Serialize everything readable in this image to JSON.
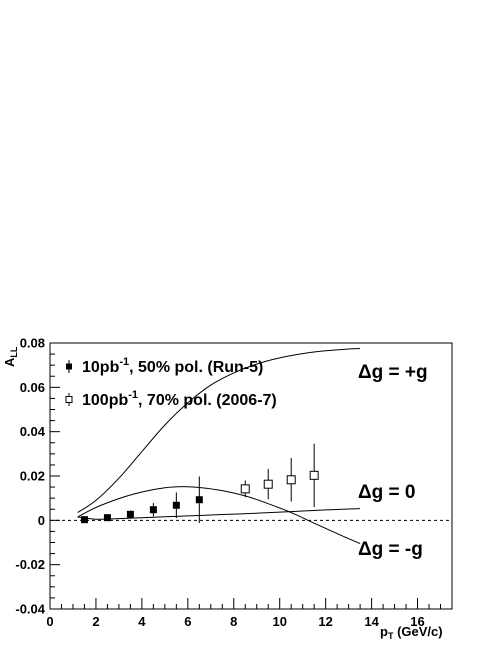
{
  "chart_data": {
    "type": "scatter",
    "xlabel": {
      "main": "p",
      "sub": "T",
      "rest": " (GeV/c)"
    },
    "ylabel": {
      "main": "A",
      "sub": "LL"
    },
    "xlim": [
      0,
      17.5
    ],
    "ylim": [
      -0.04,
      0.08
    ],
    "x_ticks": [
      "0",
      "2",
      "4",
      "6",
      "8",
      "10",
      "12",
      "14",
      "16"
    ],
    "x_tick_values": [
      0,
      2,
      4,
      6,
      8,
      10,
      12,
      14,
      16
    ],
    "y_ticks": [
      "-0.04",
      "-0.02",
      "0",
      "0.02",
      "0.04",
      "0.06",
      "0.08"
    ],
    "y_tick_values": [
      -0.04,
      -0.02,
      0,
      0.02,
      0.04,
      0.06,
      0.08
    ],
    "grid": false,
    "zero_line": "dashed",
    "series": [
      {
        "marker": "filled-square",
        "legend": {
          "pre": "10pb",
          "sup": "-1",
          "post": ", 50% pol. (Run-5)"
        },
        "points": [
          {
            "x": 1.5,
            "y": 0.0003,
            "err": 0.0007
          },
          {
            "x": 2.5,
            "y": 0.0012,
            "err": 0.0012
          },
          {
            "x": 3.5,
            "y": 0.0027,
            "err": 0.0017
          },
          {
            "x": 4.5,
            "y": 0.0048,
            "err": 0.003
          },
          {
            "x": 5.5,
            "y": 0.0068,
            "err": 0.0058
          },
          {
            "x": 6.5,
            "y": 0.0093,
            "err": 0.0105
          }
        ]
      },
      {
        "marker": "open-square",
        "legend": {
          "pre": "100pb",
          "sup": "-1",
          "post": ", 70% pol. (2006-7)"
        },
        "points": [
          {
            "x": 8.5,
            "y": 0.0142,
            "err": 0.0038
          },
          {
            "x": 9.5,
            "y": 0.0163,
            "err": 0.0068
          },
          {
            "x": 10.5,
            "y": 0.0183,
            "err": 0.0098
          },
          {
            "x": 11.5,
            "y": 0.0203,
            "err": 0.0143
          }
        ]
      }
    ],
    "curves": [
      {
        "label": "Δg = +g",
        "points": [
          [
            1.2,
            0.0035
          ],
          [
            2,
            0.009
          ],
          [
            3,
            0.019
          ],
          [
            4,
            0.031
          ],
          [
            5,
            0.043
          ],
          [
            6,
            0.053
          ],
          [
            7,
            0.061
          ],
          [
            8,
            0.0665
          ],
          [
            9,
            0.0705
          ],
          [
            10,
            0.0733
          ],
          [
            11,
            0.0752
          ],
          [
            12,
            0.0765
          ],
          [
            13,
            0.0773
          ],
          [
            13.5,
            0.0775
          ]
        ]
      },
      {
        "label": "Δg = 0",
        "points": [
          [
            1.2,
            0.0015
          ],
          [
            2,
            0.0005
          ],
          [
            3,
            0.0008
          ],
          [
            4,
            0.0012
          ],
          [
            5,
            0.0016
          ],
          [
            6,
            0.002
          ],
          [
            7,
            0.0024
          ],
          [
            8,
            0.0028
          ],
          [
            9,
            0.0032
          ],
          [
            10,
            0.0037
          ],
          [
            11,
            0.0042
          ],
          [
            12,
            0.0047
          ],
          [
            13,
            0.0051
          ],
          [
            13.5,
            0.0053
          ]
        ]
      },
      {
        "label": "Δg = -g",
        "points": [
          [
            1.2,
            0.0015
          ],
          [
            2,
            0.0058
          ],
          [
            3,
            0.0098
          ],
          [
            4,
            0.0128
          ],
          [
            5,
            0.0147
          ],
          [
            5.8,
            0.0152
          ],
          [
            6.5,
            0.0148
          ],
          [
            7.5,
            0.0134
          ],
          [
            8.5,
            0.011
          ],
          [
            9.5,
            0.0075
          ],
          [
            10.5,
            0.0035
          ],
          [
            11.5,
            -0.0013
          ],
          [
            12.5,
            -0.006
          ],
          [
            13.5,
            -0.0105
          ]
        ]
      }
    ],
    "annotations": [
      {
        "text": "Δg = +g",
        "curve": "Δg = +g"
      },
      {
        "text": "Δg = 0",
        "curve": "Δg = 0"
      },
      {
        "text": "Δg = -g",
        "curve": "Δg = -g"
      }
    ]
  }
}
